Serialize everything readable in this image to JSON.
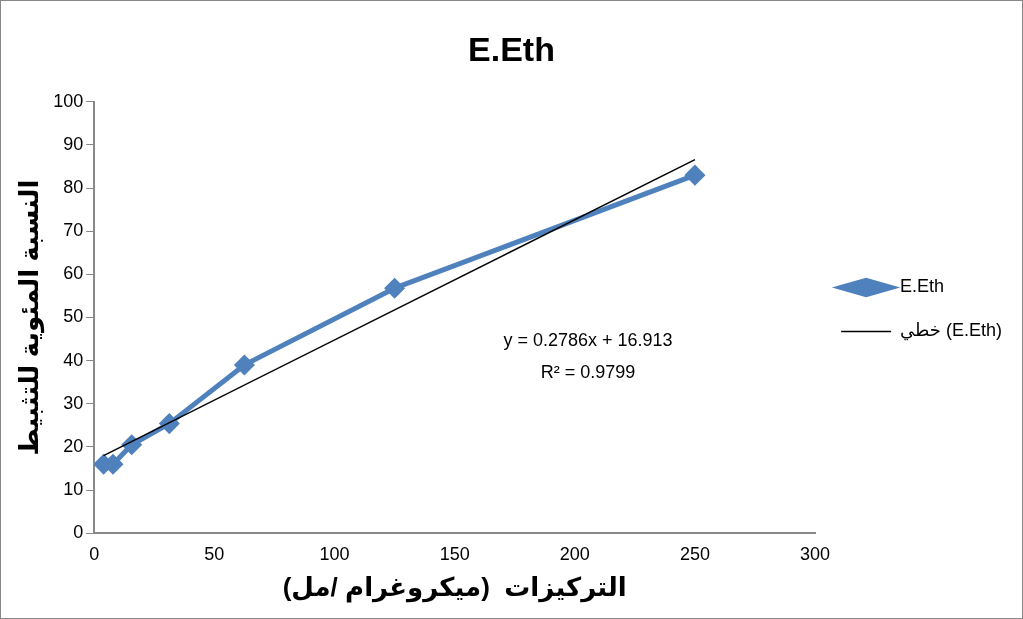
{
  "chart_data": {
    "type": "line",
    "title": "E.Eth",
    "xlabel": "التركيزات  (ميكروغرام /مل)",
    "ylabel": "النسبة المئوية للتثبيط",
    "xlim": [
      0,
      300
    ],
    "xticks": [
      0,
      50,
      100,
      150,
      200,
      250,
      300
    ],
    "ylim": [
      0,
      100
    ],
    "yticks": [
      0,
      10,
      20,
      30,
      40,
      50,
      60,
      70,
      80,
      90,
      100
    ],
    "grid": false,
    "legend": "right",
    "marker": "diamond",
    "line_style": "solid",
    "series": [
      {
        "name": "E.Eth",
        "color": "#4f81bd",
        "x": [
          3.9,
          7.8,
          15.6,
          31.25,
          62.5,
          125,
          250
        ],
        "values": [
          16,
          16,
          20.5,
          25.4,
          39,
          56.8,
          83
        ]
      },
      {
        "name": "خطي (E.Eth)",
        "marker": "none",
        "color": "#000000",
        "x": [
          3.9,
          250
        ],
        "values": [
          18,
          86.6
        ]
      }
    ],
    "annotations": [
      "y = 0.2786x + 16.913",
      "R² = 0.9799"
    ]
  }
}
